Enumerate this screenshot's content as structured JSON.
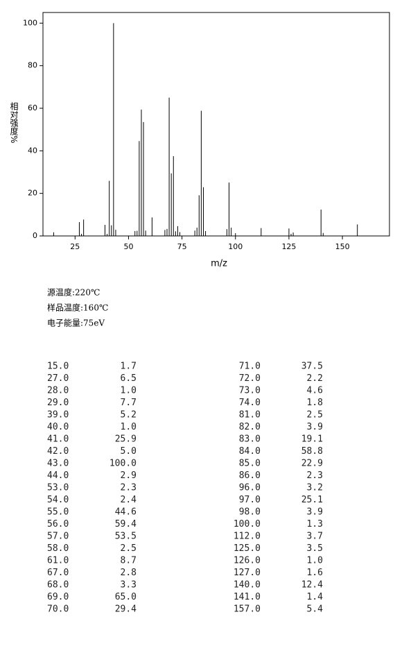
{
  "chart_data": {
    "type": "stick",
    "xlabel": "m/z",
    "ylabel": "相对强度%",
    "x": [
      15,
      27,
      28,
      29,
      39,
      40,
      41,
      42,
      43,
      44,
      53,
      54,
      55,
      56,
      57,
      58,
      61,
      67,
      68,
      69,
      70,
      71,
      72,
      73,
      74,
      81,
      82,
      83,
      84,
      85,
      86,
      96,
      97,
      98,
      100,
      112,
      125,
      126,
      127,
      140,
      141,
      157
    ],
    "values": [
      1.7,
      6.5,
      1.0,
      7.7,
      5.2,
      1.0,
      25.9,
      5.0,
      100.0,
      2.9,
      2.3,
      2.4,
      44.6,
      59.4,
      53.5,
      2.5,
      8.7,
      2.8,
      3.3,
      65.0,
      29.4,
      37.5,
      2.2,
      4.6,
      1.8,
      2.5,
      3.9,
      19.1,
      58.8,
      22.9,
      2.3,
      3.2,
      25.1,
      3.9,
      1.3,
      3.7,
      3.5,
      1.0,
      1.6,
      12.4,
      1.4,
      5.4
    ],
    "color": "#000000",
    "xlim": [
      10,
      172
    ],
    "ylim": [
      0,
      105
    ],
    "xticks": [
      25,
      50,
      75,
      100,
      125,
      150
    ],
    "yticks": [
      0,
      20,
      40,
      60,
      80,
      100
    ]
  },
  "info": [
    "源温度:220℃",
    "样品温度:160℃",
    "电子能量:75eV"
  ],
  "table": {
    "rows": [
      [
        "15.0",
        "1.7",
        "71.0",
        "37.5"
      ],
      [
        "27.0",
        "6.5",
        "72.0",
        "2.2"
      ],
      [
        "28.0",
        "1.0",
        "73.0",
        "4.6"
      ],
      [
        "29.0",
        "7.7",
        "74.0",
        "1.8"
      ],
      [
        "39.0",
        "5.2",
        "81.0",
        "2.5"
      ],
      [
        "40.0",
        "1.0",
        "82.0",
        "3.9"
      ],
      [
        "41.0",
        "25.9",
        "83.0",
        "19.1"
      ],
      [
        "42.0",
        "5.0",
        "84.0",
        "58.8"
      ],
      [
        "43.0",
        "100.0",
        "85.0",
        "22.9"
      ],
      [
        "44.0",
        "2.9",
        "86.0",
        "2.3"
      ],
      [
        "53.0",
        "2.3",
        "96.0",
        "3.2"
      ],
      [
        "54.0",
        "2.4",
        "97.0",
        "25.1"
      ],
      [
        "55.0",
        "44.6",
        "98.0",
        "3.9"
      ],
      [
        "56.0",
        "59.4",
        "100.0",
        "1.3"
      ],
      [
        "57.0",
        "53.5",
        "112.0",
        "3.7"
      ],
      [
        "58.0",
        "2.5",
        "125.0",
        "3.5"
      ],
      [
        "61.0",
        "8.7",
        "126.0",
        "1.0"
      ],
      [
        "67.0",
        "2.8",
        "127.0",
        "1.6"
      ],
      [
        "68.0",
        "3.3",
        "140.0",
        "12.4"
      ],
      [
        "69.0",
        "65.0",
        "141.0",
        "1.4"
      ],
      [
        "70.0",
        "29.4",
        "157.0",
        "5.4"
      ]
    ]
  }
}
